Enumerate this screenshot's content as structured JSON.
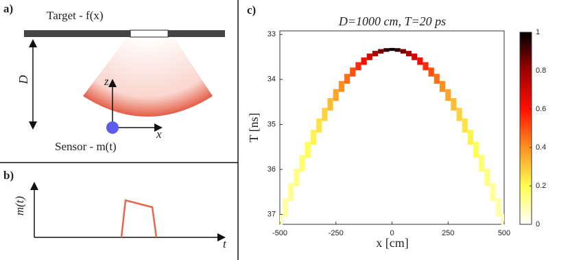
{
  "panel_a": {
    "label": "a)",
    "target": "Target - f(x)",
    "distance": "D",
    "axis_z": "z",
    "axis_x": "x",
    "sensor": "Sensor - m(t)"
  },
  "panel_b": {
    "label": "b)",
    "y_label": "m(t)",
    "x_label": "t"
  },
  "chart_data": {
    "type": "heatmap",
    "panel_label": "c)",
    "title": "D=1000 cm,  T=20 ps",
    "x_label": "x [cm]",
    "y_label": "T [ns]",
    "x": [
      -500,
      -475,
      -450,
      -425,
      -400,
      -375,
      -350,
      -325,
      -300,
      -275,
      -250,
      -225,
      -200,
      -175,
      -150,
      -125,
      -100,
      -75,
      -50,
      -25,
      0,
      25,
      50,
      75,
      100,
      125,
      150,
      175,
      200,
      225,
      250,
      275,
      300,
      325,
      350,
      375,
      400,
      425,
      450,
      475,
      500
    ],
    "values": [
      37.2,
      36.84,
      36.5,
      36.17,
      35.86,
      35.56,
      35.28,
      35.02,
      34.77,
      34.55,
      34.34,
      34.15,
      33.98,
      33.83,
      33.7,
      33.59,
      33.49,
      33.42,
      33.37,
      33.34,
      33.33,
      33.34,
      33.37,
      33.42,
      33.49,
      33.59,
      33.7,
      33.83,
      33.98,
      34.15,
      34.34,
      34.55,
      34.77,
      35.02,
      35.28,
      35.56,
      35.86,
      36.17,
      36.5,
      36.84,
      37.2
    ],
    "intensity": [
      0.08,
      0.1,
      0.12,
      0.14,
      0.16,
      0.19,
      0.22,
      0.25,
      0.28,
      0.32,
      0.36,
      0.4,
      0.45,
      0.5,
      0.56,
      0.62,
      0.7,
      0.78,
      0.85,
      0.93,
      1,
      0.93,
      0.85,
      0.78,
      0.7,
      0.62,
      0.56,
      0.5,
      0.45,
      0.4,
      0.36,
      0.32,
      0.28,
      0.25,
      0.22,
      0.19,
      0.16,
      0.14,
      0.12,
      0.1,
      0.08
    ],
    "xlim": [
      -500,
      500
    ],
    "xticks": [
      -500,
      -250,
      0,
      250,
      500
    ],
    "ylim": [
      32.92,
      37.22
    ],
    "yticks": [
      33,
      34,
      35,
      36,
      37
    ],
    "y_reversed": true,
    "colorbar_lim": [
      0,
      1
    ],
    "colorbar_ticks": [
      0,
      0.2,
      0.4,
      0.6,
      0.8,
      1
    ]
  }
}
